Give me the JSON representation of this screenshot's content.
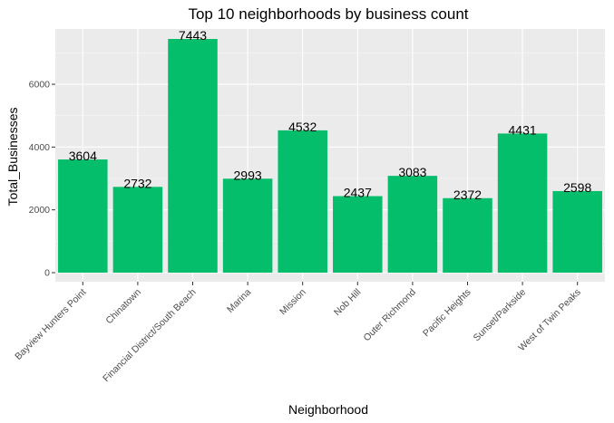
{
  "chart_data": {
    "type": "bar",
    "title": "Top 10 neighborhoods by business count",
    "xlabel": "Neighborhood",
    "ylabel": "Total_Businesses",
    "categories": [
      "Bayview Hunters Point",
      "Chinatown",
      "Financial District/South Beach",
      "Marina",
      "Mission",
      "Nob Hill",
      "Outer Richmond",
      "Pacific Heights",
      "Sunset/Parkside",
      "West of Twin Peaks"
    ],
    "values": [
      3604,
      2732,
      7443,
      2993,
      4532,
      2437,
      3083,
      2372,
      4431,
      2598
    ],
    "data_labels": [
      "3604",
      "2732",
      "7443",
      "2993",
      "4532",
      "2437",
      "3083",
      "2372",
      "4431",
      "2598"
    ],
    "ylim": [
      0,
      7443
    ],
    "yticks": [
      0,
      2000,
      4000,
      6000
    ],
    "ytick_labels": [
      "0",
      "2000",
      "4000",
      "6000"
    ],
    "grid": true,
    "legend": "none",
    "colors": {
      "bar": "#04BE6B",
      "panel": "#EBEBEB",
      "grid_major": "#FFFFFF",
      "grid_minor": "#F5F5F5",
      "tick_text": "#4D4D4D",
      "tick_mark": "#333333"
    }
  }
}
